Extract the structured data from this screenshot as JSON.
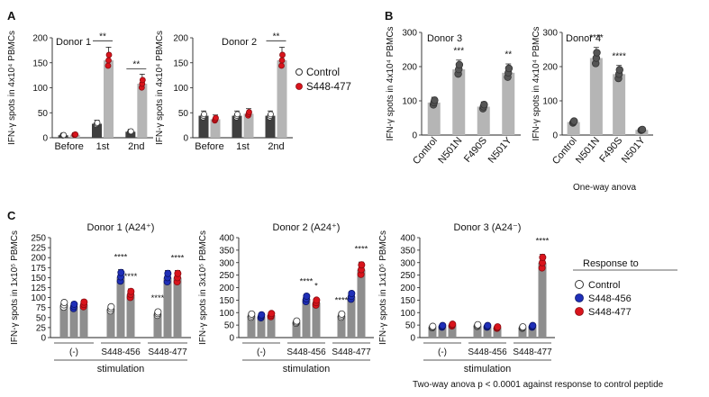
{
  "panel_labels": {
    "A": "A",
    "B": "B",
    "C": "C"
  },
  "notes": {
    "one_way": "One-way anova",
    "two_way": "Two-way anova p < 0.0001 against response to control peptide"
  },
  "legend_A": {
    "control": "Control",
    "s448_477": "S448-477"
  },
  "legend_C": {
    "title": "Response to",
    "control": "Control",
    "s448_456": "S448-456",
    "s448_477": "S448-477"
  },
  "colors": {
    "dark_bar": "#3f3f3f",
    "light_bar": "#b5b5b5",
    "mid_bar": "#8e8e8e",
    "control": "#ffffff",
    "s448_456": "#1f2fb8",
    "s448_477": "#d9141c",
    "grey_dot": "#555555"
  },
  "chart_data": [
    {
      "id": "A1",
      "type": "bar",
      "title": "Donor 1",
      "ylabel": "IFN-γ spots in 4x10⁴ PBMCs",
      "ylim": [
        0,
        200
      ],
      "yticks": [
        0,
        50,
        100,
        150,
        200
      ],
      "categories": [
        "Before",
        "1st",
        "2nd"
      ],
      "series": [
        {
          "name": "Control",
          "values": [
            5,
            28,
            12
          ]
        },
        {
          "name": "S448-477",
          "values": [
            6,
            155,
            108
          ]
        }
      ],
      "significance": [
        {
          "category": "1st",
          "label": "**"
        },
        {
          "category": "2nd",
          "label": "**"
        }
      ]
    },
    {
      "id": "A2",
      "type": "bar",
      "title": "Donor 2",
      "ylabel": "IFN-γ spots in 4x10⁴ PBMCs",
      "ylim": [
        0,
        200
      ],
      "yticks": [
        0,
        50,
        100,
        150,
        200
      ],
      "categories": [
        "Before",
        "1st",
        "2nd"
      ],
      "series": [
        {
          "name": "Control",
          "values": [
            44,
            44,
            44
          ]
        },
        {
          "name": "S448-477",
          "values": [
            37,
            48,
            155
          ]
        }
      ],
      "significance": [
        {
          "category": "2nd",
          "label": "**"
        }
      ]
    },
    {
      "id": "B1",
      "type": "bar",
      "title": "Donor 3",
      "ylabel": "IFN-γ spots in 4x10⁴ PBMCs",
      "ylim": [
        0,
        300
      ],
      "yticks": [
        0,
        100,
        200,
        300
      ],
      "categories": [
        "Control",
        "N501N",
        "F490S",
        "N501Y"
      ],
      "values": [
        95,
        192,
        83,
        182
      ],
      "significance": [
        "",
        "***",
        "",
        "**"
      ]
    },
    {
      "id": "B2",
      "type": "bar",
      "title": "Donor 4",
      "ylabel": "IFN-γ spots in 4x10⁴ PBMCs",
      "ylim": [
        0,
        300
      ],
      "yticks": [
        0,
        100,
        200,
        300
      ],
      "categories": [
        "Control",
        "N501N",
        "F490S",
        "N501Y"
      ],
      "values": [
        38,
        225,
        178,
        15
      ],
      "significance": [
        "",
        "****",
        "****",
        ""
      ]
    },
    {
      "id": "C1",
      "type": "bar",
      "title": "Donor 1 (A24⁺)",
      "ylabel": "IFN-γ spots in 1x10⁵ PBMCs",
      "xlabel": "stimulation",
      "ylim": [
        0,
        250
      ],
      "yticks": [
        0,
        25,
        50,
        75,
        100,
        125,
        150,
        175,
        200,
        225,
        250
      ],
      "groups": [
        "(-)",
        "S448-456",
        "S448-477"
      ],
      "series": [
        {
          "name": "Control",
          "values": [
            82,
            72,
            60
          ]
        },
        {
          "name": "S448-456",
          "values": [
            78,
            152,
            150
          ]
        },
        {
          "name": "S448-477",
          "values": [
            83,
            108,
            150
          ]
        }
      ],
      "significance": [
        "",
        "",
        "",
        "",
        "****",
        "****",
        "****",
        "",
        "****"
      ]
    },
    {
      "id": "C2",
      "type": "bar",
      "title": "Donor 2 (A24⁺)",
      "ylabel": "IFN-γ spots in 3x10⁵ PBMCs",
      "xlabel": "stimulation",
      "ylim": [
        0,
        400
      ],
      "yticks": [
        0,
        50,
        100,
        150,
        200,
        250,
        300,
        350,
        400
      ],
      "groups": [
        "(-)",
        "S448-456",
        "S448-477"
      ],
      "series": [
        {
          "name": "Control",
          "values": [
            88,
            62,
            88
          ]
        },
        {
          "name": "S448-456",
          "values": [
            85,
            155,
            165
          ]
        },
        {
          "name": "S448-477",
          "values": [
            90,
            140,
            272
          ]
        }
      ],
      "significance": [
        "",
        "",
        "",
        "",
        "****",
        "*",
        "****",
        "",
        "****"
      ]
    },
    {
      "id": "C3",
      "type": "bar",
      "title": "Donor 3 (A24⁻)",
      "ylabel": "IFN-γ spots in 1x10⁵ PBMCs",
      "xlabel": "stimulation",
      "ylim": [
        0,
        400
      ],
      "yticks": [
        0,
        50,
        100,
        150,
        200,
        250,
        300,
        350,
        400
      ],
      "groups": [
        "(-)",
        "S448-456",
        "S448-477"
      ],
      "series": [
        {
          "name": "Control",
          "values": [
            42,
            48,
            40
          ]
        },
        {
          "name": "S448-456",
          "values": [
            45,
            45,
            45
          ]
        },
        {
          "name": "S448-477",
          "values": [
            50,
            40,
            300
          ]
        }
      ],
      "significance": [
        "",
        "",
        "",
        "",
        "",
        "",
        "",
        "",
        "****"
      ]
    }
  ]
}
